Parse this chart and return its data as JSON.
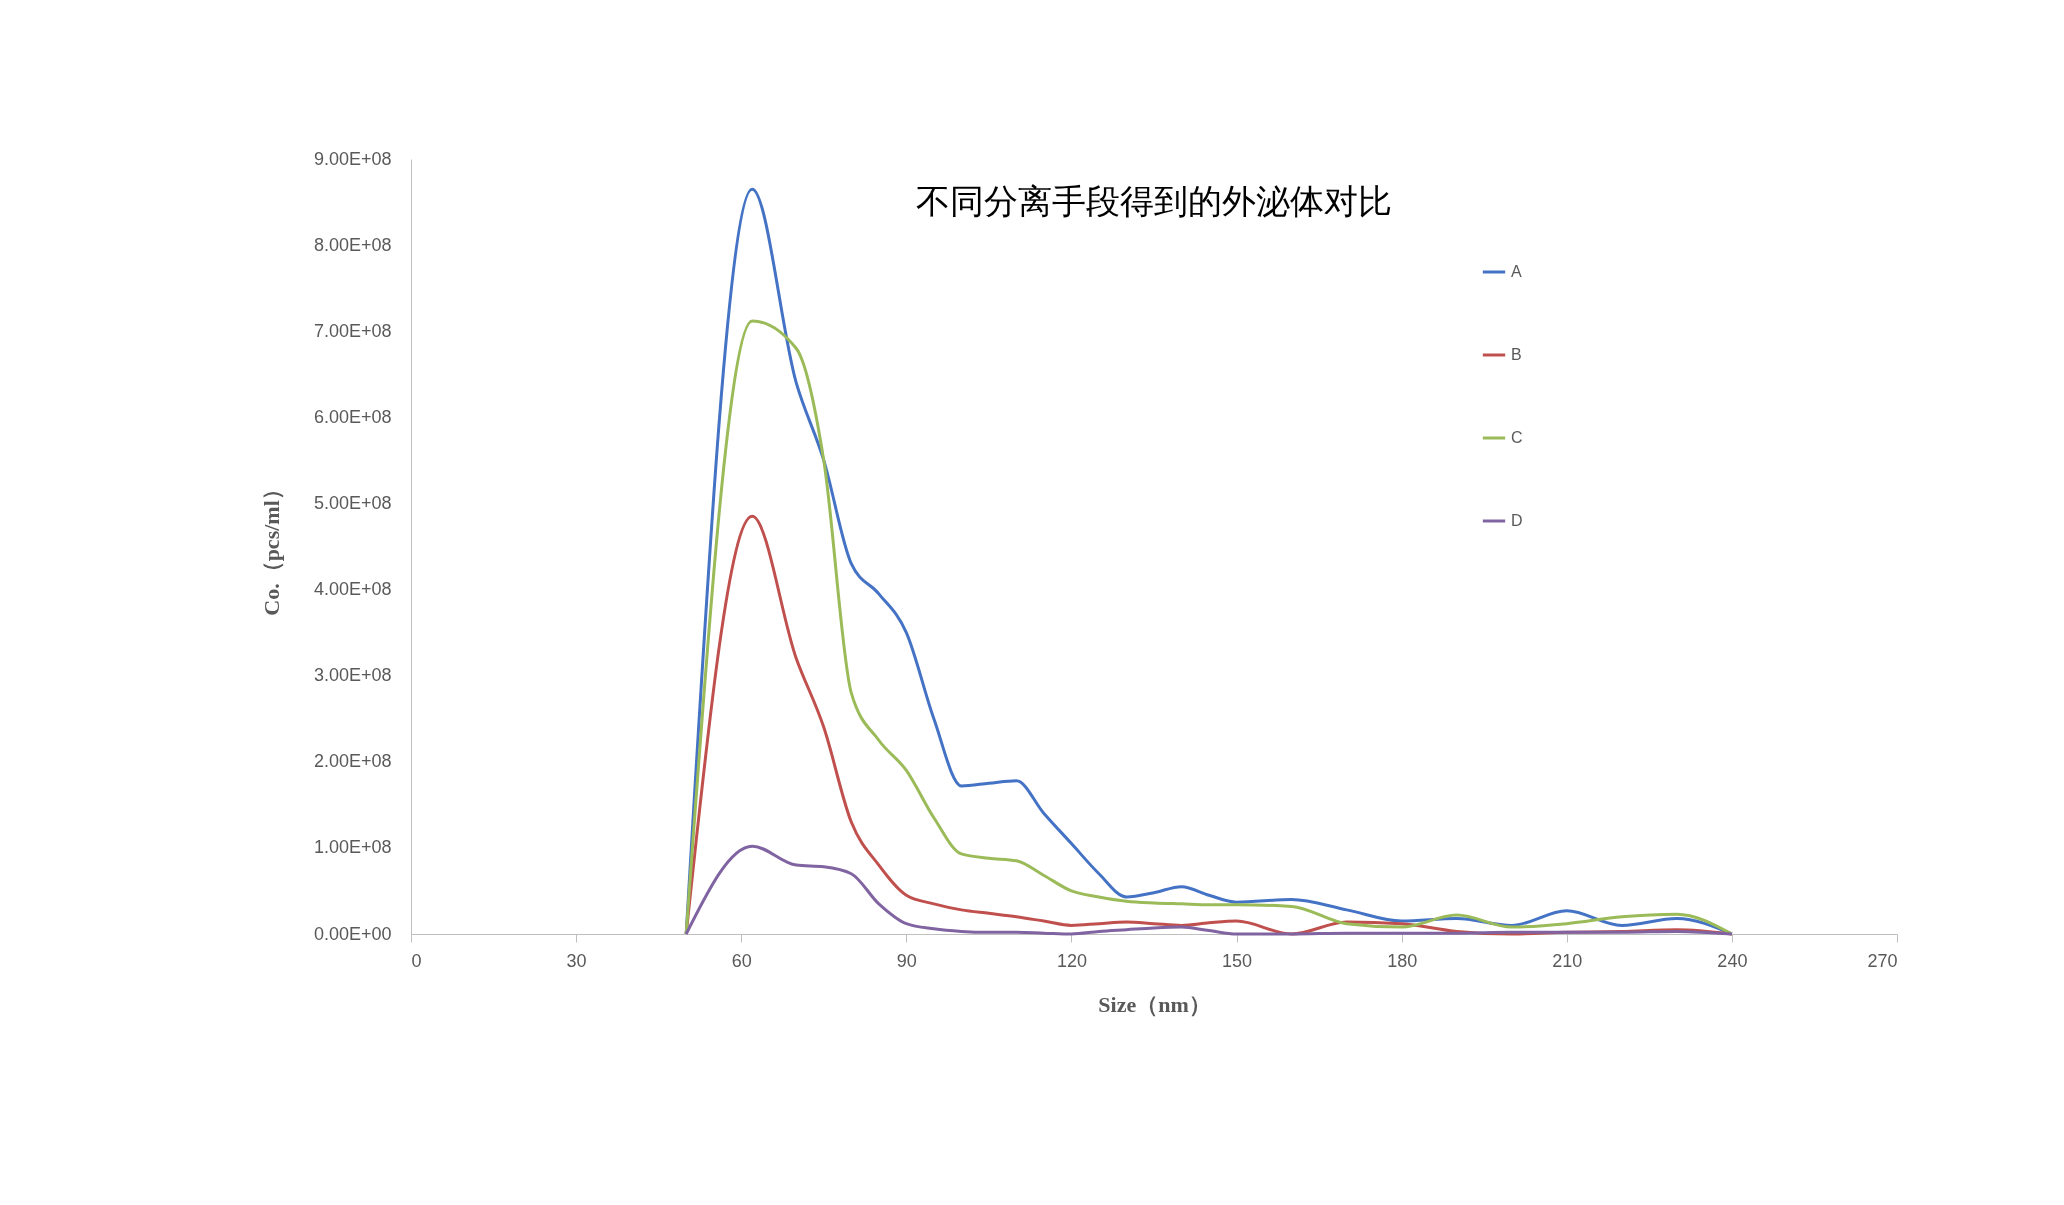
{
  "chart_data": {
    "type": "line",
    "title": "不同分离手段得到的外泌体对比",
    "xlabel": "Size（nm）",
    "ylabel": "Co.（pcs/ml）",
    "xlim": [
      0,
      270
    ],
    "xticks": [
      0,
      30,
      60,
      90,
      120,
      150,
      180,
      210,
      240,
      270
    ],
    "ylim": [
      0,
      900000000
    ],
    "yticks": [
      {
        "value": 0,
        "label": "0.00E+00"
      },
      {
        "value": 100000000,
        "label": "1.00E+08"
      },
      {
        "value": 200000000,
        "label": "2.00E+08"
      },
      {
        "value": 300000000,
        "label": "3.00E+08"
      },
      {
        "value": 400000000,
        "label": "4.00E+08"
      },
      {
        "value": 500000000,
        "label": "5.00E+08"
      },
      {
        "value": 600000000,
        "label": "6.00E+08"
      },
      {
        "value": 700000000,
        "label": "7.00E+08"
      },
      {
        "value": 800000000,
        "label": "8.00E+08"
      },
      {
        "value": 900000000,
        "label": "9.00E+08"
      }
    ],
    "grid": false,
    "legend": "right",
    "marker": "none",
    "line_style": "solid",
    "x": [
      50,
      62,
      70,
      75,
      80,
      85,
      90,
      95,
      100,
      105,
      110,
      115,
      120,
      125,
      130,
      135,
      140,
      145,
      150,
      160,
      170,
      180,
      190,
      200,
      210,
      220,
      230,
      240
    ],
    "series": [
      {
        "name": "A",
        "color": "#4472c4",
        "values": [
          0,
          865000000,
          640000000,
          550000000,
          430000000,
          395000000,
          350000000,
          250000000,
          172000000,
          175000000,
          178000000,
          140000000,
          105000000,
          70000000,
          43000000,
          48000000,
          55000000,
          45000000,
          37000000,
          40000000,
          28000000,
          15000000,
          18000000,
          10000000,
          27000000,
          10000000,
          18000000,
          0
        ]
      },
      {
        "name": "B",
        "color": "#c0504d",
        "values": [
          0,
          485000000,
          320000000,
          240000000,
          130000000,
          80000000,
          45000000,
          35000000,
          28000000,
          24000000,
          20000000,
          15000000,
          10000000,
          12000000,
          14000000,
          12000000,
          10000000,
          13000000,
          15000000,
          0,
          14000000,
          12000000,
          3000000,
          0,
          2000000,
          3000000,
          5000000,
          0
        ]
      },
      {
        "name": "C",
        "color": "#9bbb59",
        "values": [
          0,
          712000000,
          680000000,
          550000000,
          280000000,
          225000000,
          190000000,
          135000000,
          93000000,
          88000000,
          85000000,
          68000000,
          50000000,
          43000000,
          38000000,
          36000000,
          35000000,
          34000000,
          34000000,
          32000000,
          12000000,
          8000000,
          22000000,
          8000000,
          12000000,
          20000000,
          23000000,
          0
        ]
      },
      {
        "name": "D",
        "color": "#8064a2",
        "values": [
          0,
          102000000,
          80000000,
          78000000,
          70000000,
          35000000,
          12000000,
          6000000,
          3000000,
          2000000,
          2000000,
          1000000,
          0,
          3000000,
          5000000,
          7000000,
          8000000,
          4000000,
          0,
          0,
          1000000,
          1000000,
          1000000,
          2000000,
          2000000,
          2000000,
          3000000,
          0
        ]
      }
    ]
  }
}
